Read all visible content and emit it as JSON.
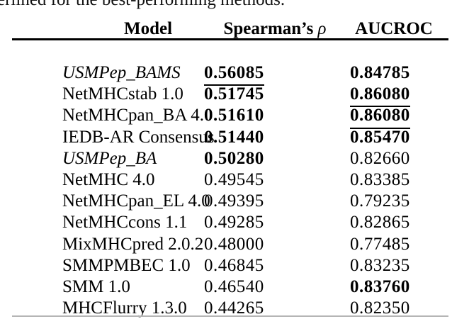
{
  "caption_fragment": "erlined for the best-performing methods.",
  "table": {
    "headers": {
      "model": "Model",
      "spearman_prefix": "Spearman’s ",
      "rho": "ρ",
      "aucroc": "AUCROC"
    },
    "rows": [
      {
        "model": "USMPep_BAMS",
        "model_style": "italic",
        "spearman": "0.56085",
        "spearman_style": "bold underline",
        "aucroc": "0.84785",
        "aucroc_style": "bold"
      },
      {
        "model": "NetMHCstab 1.0",
        "model_style": "",
        "spearman": "0.51745",
        "spearman_style": "bold",
        "aucroc": "0.86080",
        "aucroc_style": "bold underline"
      },
      {
        "model": "NetMHCpan_BA 4.0",
        "model_style": "",
        "spearman": "0.51610",
        "spearman_style": "bold",
        "aucroc": "0.86080",
        "aucroc_style": "bold underline"
      },
      {
        "model": "IEDB-AR Consensus",
        "model_style": "",
        "spearman": "0.51440",
        "spearman_style": "bold",
        "aucroc": "0.85470",
        "aucroc_style": "bold"
      },
      {
        "model": "USMPep_BA",
        "model_style": "italic",
        "spearman": "0.50280",
        "spearman_style": "bold",
        "aucroc": "0.82660",
        "aucroc_style": ""
      },
      {
        "model": "NetMHC 4.0",
        "model_style": "",
        "spearman": "0.49545",
        "spearman_style": "",
        "aucroc": "0.83385",
        "aucroc_style": ""
      },
      {
        "model": "NetMHCpan_EL 4.0",
        "model_style": "",
        "spearman": "0.49395",
        "spearman_style": "",
        "aucroc": "0.79235",
        "aucroc_style": ""
      },
      {
        "model": "NetMHCcons 1.1",
        "model_style": "",
        "spearman": "0.49285",
        "spearman_style": "",
        "aucroc": "0.82865",
        "aucroc_style": ""
      },
      {
        "model": "MixMHCpred 2.0.2",
        "model_style": "",
        "spearman": "0.48000",
        "spearman_style": "",
        "aucroc": "0.77485",
        "aucroc_style": ""
      },
      {
        "model": "SMMPMBEC 1.0",
        "model_style": "",
        "spearman": "0.46845",
        "spearman_style": "",
        "aucroc": "0.83235",
        "aucroc_style": ""
      },
      {
        "model": "SMM 1.0",
        "model_style": "",
        "spearman": "0.46540",
        "spearman_style": "",
        "aucroc": "0.83760",
        "aucroc_style": "bold"
      },
      {
        "model": "MHCFlurry 1.3.0",
        "model_style": "",
        "spearman": "0.44265",
        "spearman_style": "",
        "aucroc": "0.82350",
        "aucroc_style": ""
      }
    ]
  },
  "colors": {
    "text": "#000000",
    "rule": "#000000",
    "faint_rule": "#b5b5b5",
    "background": "#ffffff"
  }
}
